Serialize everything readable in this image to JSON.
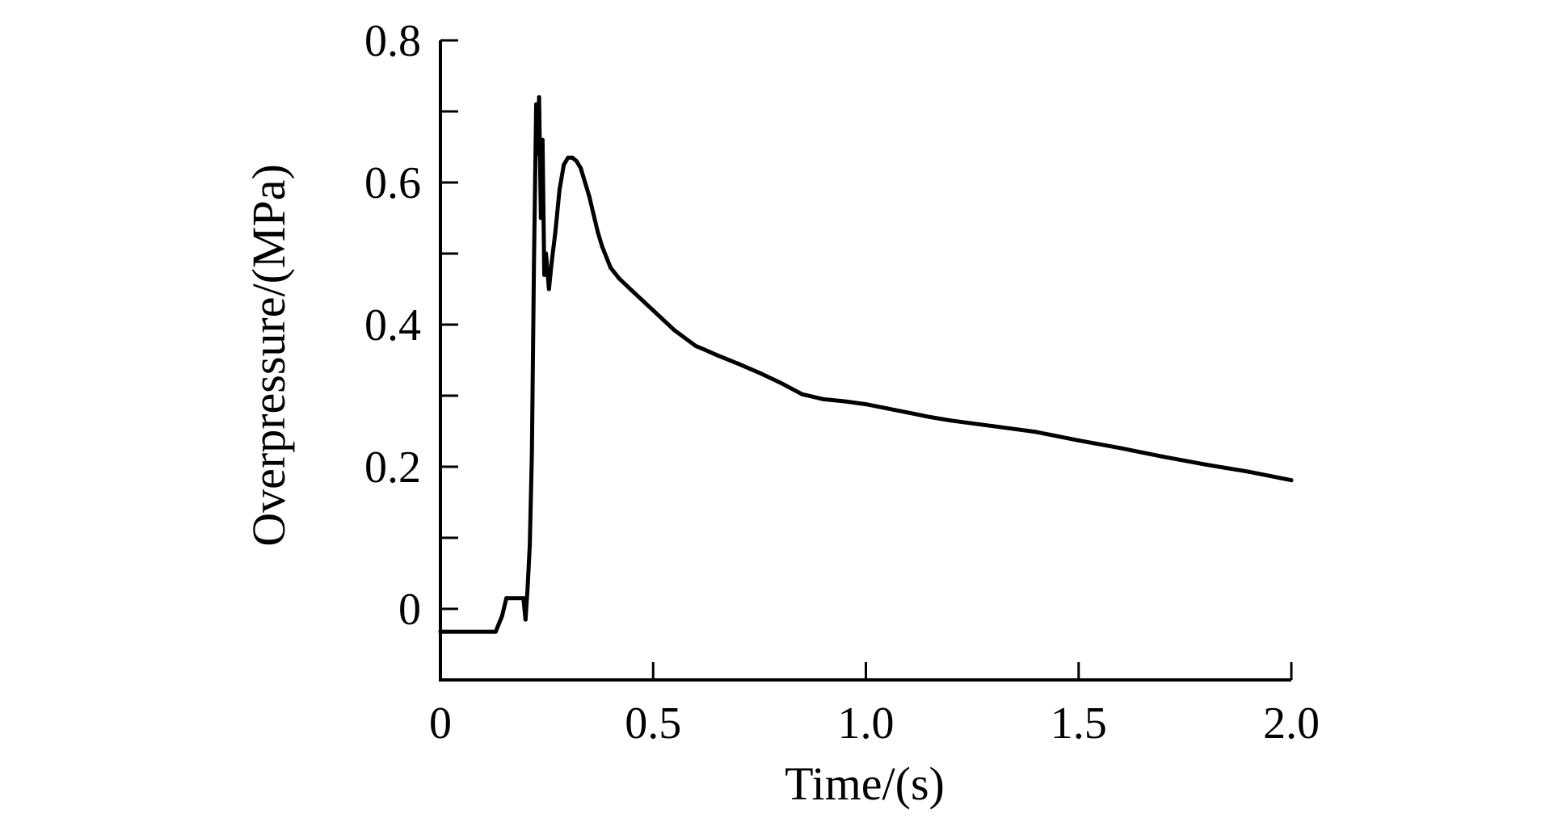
{
  "chart_data": {
    "type": "line",
    "title": "",
    "xlabel": "Time/(s)",
    "ylabel": "Overpressure/(MPa)",
    "xlim": [
      0,
      2.0
    ],
    "ylim": [
      -0.1,
      0.8
    ],
    "grid": false,
    "legend": "none",
    "x_ticks": [
      0,
      0.5,
      1.0,
      1.5,
      2.0
    ],
    "x_tick_labels": [
      "0",
      "0.5",
      "1.0",
      "1.5",
      "2.0"
    ],
    "y_ticks": [
      0,
      0.2,
      0.4,
      0.6,
      0.8
    ],
    "y_tick_labels": [
      "0",
      "0.2",
      "0.4",
      "0.6",
      "0.8"
    ],
    "y_minor_ticks": [
      -0.1,
      0.1,
      0.3,
      0.5,
      0.7
    ],
    "x_minor_ticks": [],
    "line_color": "#000000",
    "series": [
      {
        "x": [
          0,
          0.13,
          0.145,
          0.155,
          0.195,
          0.2,
          0.205,
          0.21,
          0.215,
          0.22,
          0.225,
          0.228,
          0.232,
          0.236,
          0.24,
          0.244,
          0.248,
          0.255,
          0.262,
          0.27,
          0.28,
          0.29,
          0.3,
          0.31,
          0.32,
          0.33,
          0.34,
          0.35,
          0.36,
          0.37,
          0.38,
          0.4,
          0.42,
          0.45,
          0.5,
          0.55,
          0.6,
          0.62,
          0.65,
          0.7,
          0.75,
          0.8,
          0.85,
          0.9,
          0.95,
          1.0,
          1.05,
          1.1,
          1.15,
          1.2,
          1.3,
          1.4,
          1.5,
          1.6,
          1.7,
          1.8,
          1.9,
          2.0
        ],
        "y": [
          -0.032,
          -0.032,
          -0.01,
          0.015,
          0.015,
          -0.015,
          0.03,
          0.09,
          0.22,
          0.49,
          0.71,
          0.64,
          0.72,
          0.55,
          0.66,
          0.47,
          0.5,
          0.45,
          0.49,
          0.53,
          0.59,
          0.625,
          0.635,
          0.635,
          0.63,
          0.62,
          0.6,
          0.58,
          0.555,
          0.53,
          0.51,
          0.48,
          0.465,
          0.448,
          0.42,
          0.392,
          0.37,
          0.365,
          0.357,
          0.345,
          0.332,
          0.318,
          0.302,
          0.295,
          0.292,
          0.288,
          0.282,
          0.276,
          0.27,
          0.265,
          0.257,
          0.249,
          0.237,
          0.226,
          0.214,
          0.203,
          0.193,
          0.181
        ]
      }
    ]
  }
}
